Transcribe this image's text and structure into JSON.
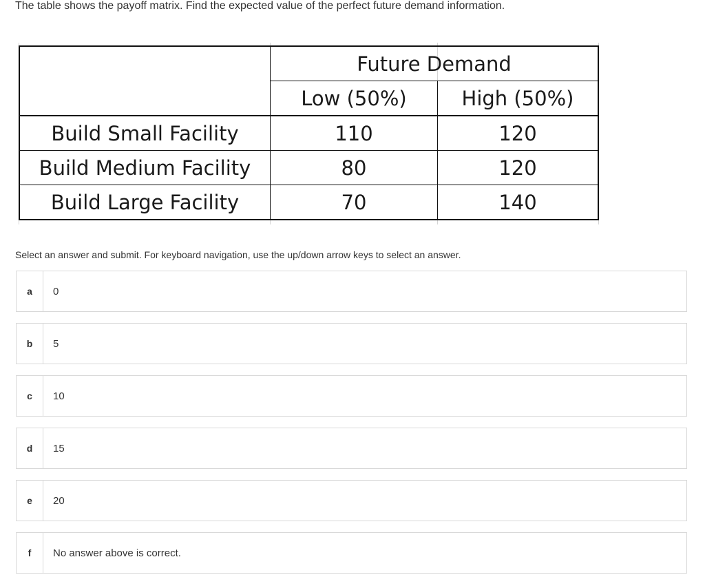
{
  "question": "The table shows the payoff matrix. Find the expected value of the perfect future demand information.",
  "table": {
    "header": "Future Demand",
    "columns": [
      "Low (50%)",
      "High (50%)"
    ],
    "rows": [
      {
        "label": "Build Small Facility",
        "low": "110",
        "high": "120"
      },
      {
        "label": "Build Medium Facility",
        "low": "80",
        "high": "120"
      },
      {
        "label": "Build Large Facility",
        "low": "70",
        "high": "140"
      }
    ]
  },
  "instructions": "Select an answer and submit. For keyboard navigation, use the up/down arrow keys to select an answer.",
  "options": [
    {
      "letter": "a",
      "text": "0"
    },
    {
      "letter": "b",
      "text": "5"
    },
    {
      "letter": "c",
      "text": "10"
    },
    {
      "letter": "d",
      "text": "15"
    },
    {
      "letter": "e",
      "text": "20"
    },
    {
      "letter": "f",
      "text": "No answer above is correct."
    }
  ]
}
